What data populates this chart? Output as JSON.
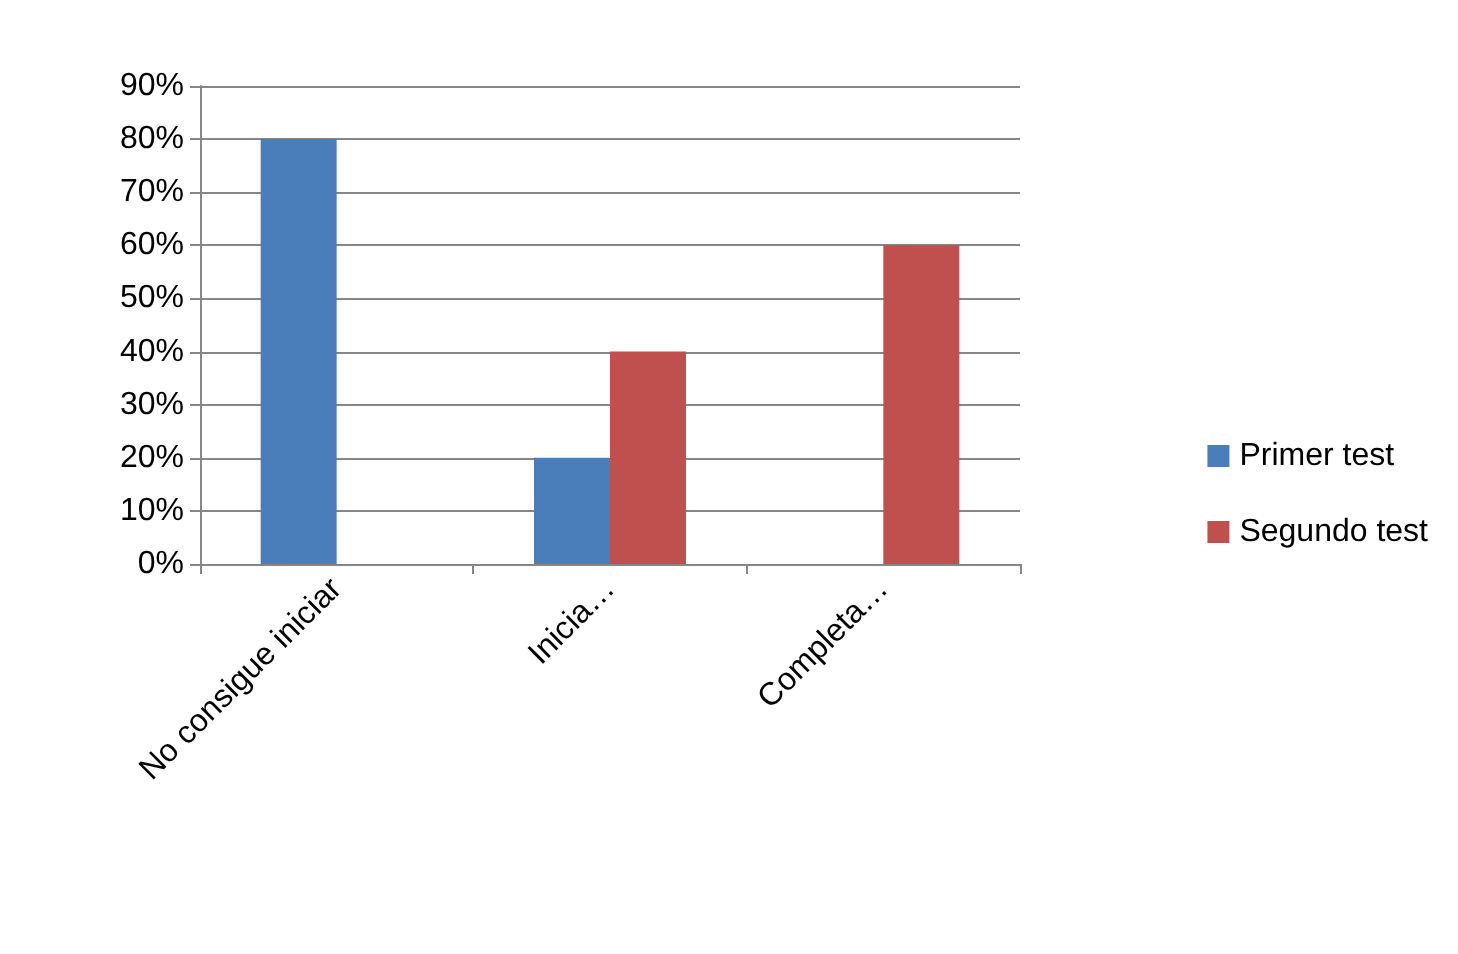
{
  "chart_data": {
    "type": "bar",
    "categories": [
      "No consigue iniciar",
      "Inicia…",
      "Completa…"
    ],
    "series": [
      {
        "name": "Primer test",
        "color": "#4a7ebb",
        "values": [
          80,
          20,
          null
        ]
      },
      {
        "name": "Segundo test",
        "color": "#c0504d",
        "values": [
          null,
          40,
          60
        ]
      }
    ],
    "ylim": [
      0,
      90
    ],
    "yticks": [
      {
        "value": 0,
        "label": "0%"
      },
      {
        "value": 10,
        "label": "10%"
      },
      {
        "value": 20,
        "label": "20%"
      },
      {
        "value": 30,
        "label": "30%"
      },
      {
        "value": 40,
        "label": "40%"
      },
      {
        "value": 50,
        "label": "50%"
      },
      {
        "value": 60,
        "label": "60%"
      },
      {
        "value": 70,
        "label": "70%"
      },
      {
        "value": 80,
        "label": "80%"
      },
      {
        "value": 90,
        "label": "90%"
      }
    ],
    "grid": "y",
    "legend": "right"
  }
}
